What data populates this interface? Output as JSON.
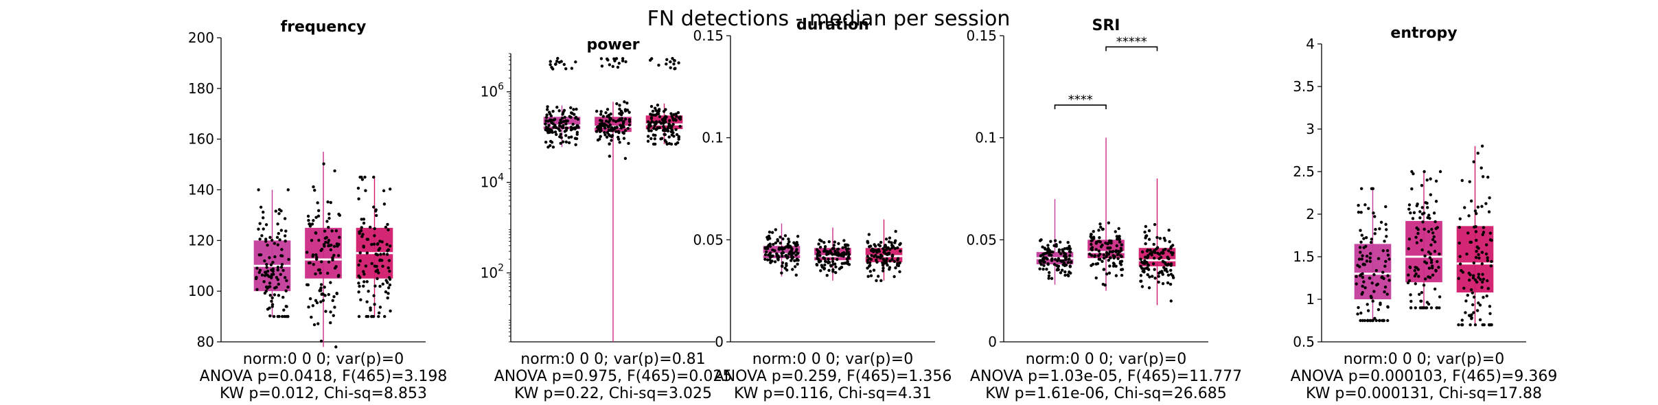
{
  "figure_title": "FN detections - median per session",
  "colors": {
    "group1": "#c43c9b",
    "group2": "#cb2b85",
    "group3": "#d11a6b",
    "median": "#ffffff",
    "points": "#000000",
    "axis": "#000000"
  },
  "chart_data": [
    {
      "type": "box",
      "title": "frequency",
      "yscale": "linear",
      "ylim": [
        80,
        200
      ],
      "yticks": [
        80,
        100,
        120,
        140,
        160,
        180,
        200
      ],
      "ytick_labels": [
        "80",
        "100",
        "120",
        "140",
        "160",
        "180",
        "200"
      ],
      "groups": [
        {
          "q1": 100,
          "median": 110,
          "q3": 120,
          "whisker_low": 90,
          "whisker_high": 140
        },
        {
          "q1": 105,
          "median": 112.5,
          "q3": 125,
          "whisker_low": 78,
          "whisker_high": 155
        },
        {
          "q1": 105,
          "median": 115,
          "q3": 125,
          "whisker_low": 90,
          "whisker_high": 145
        }
      ],
      "stats": [
        "norm:0  0  0; var(p)=0",
        "ANOVA p=0.0418, F(465)=3.198",
        "KW p=0.012, Chi-sq=8.853"
      ]
    },
    {
      "type": "box",
      "title": "power",
      "yscale": "log",
      "ylim": [
        3,
        7000000
      ],
      "yticks": [
        100,
        10000,
        1000000
      ],
      "ytick_labels": [
        "10",
        "10",
        "10"
      ],
      "ytick_exponents": [
        "2",
        "4",
        "6"
      ],
      "groups": [
        {
          "q1": 150000,
          "median": 180000,
          "q3": 280000,
          "whisker_low": 60000,
          "whisker_high": 500000
        },
        {
          "q1": 130000,
          "median": 170000,
          "q3": 280000,
          "whisker_low": 3,
          "whisker_high": 600000
        },
        {
          "q1": 150000,
          "median": 190000,
          "q3": 300000,
          "whisker_low": 70000,
          "whisker_high": 550000
        }
      ],
      "stats": [
        "norm:0  0  0; var(p)=0.81",
        "ANOVA p=0.975, F(465)=0.025",
        "KW p=0.22, Chi-sq=3.025"
      ]
    },
    {
      "type": "box",
      "title": "duration",
      "yscale": "linear",
      "ylim": [
        0,
        0.15
      ],
      "yticks": [
        0,
        0.05,
        0.1,
        0.15
      ],
      "ytick_labels": [
        "0",
        "0.05",
        "0.1",
        "0.15"
      ],
      "groups": [
        {
          "q1": 0.041,
          "median": 0.043,
          "q3": 0.047,
          "whisker_low": 0.032,
          "whisker_high": 0.058
        },
        {
          "q1": 0.04,
          "median": 0.042,
          "q3": 0.046,
          "whisker_low": 0.03,
          "whisker_high": 0.056
        },
        {
          "q1": 0.039,
          "median": 0.042,
          "q3": 0.046,
          "whisker_low": 0.03,
          "whisker_high": 0.06
        }
      ],
      "stats": [
        "norm:0  0  0; var(p)=0",
        "ANOVA p=0.259, F(465)=1.356",
        "KW p=0.116, Chi-sq=4.31"
      ]
    },
    {
      "type": "box",
      "title": "SRI",
      "yscale": "linear",
      "ylim": [
        0,
        0.15
      ],
      "yticks": [
        0,
        0.05,
        0.1,
        0.15
      ],
      "ytick_labels": [
        "0",
        "0.05",
        "0.1",
        "0.15"
      ],
      "groups": [
        {
          "q1": 0.038,
          "median": 0.041,
          "q3": 0.044,
          "whisker_low": 0.028,
          "whisker_high": 0.07
        },
        {
          "q1": 0.041,
          "median": 0.044,
          "q3": 0.05,
          "whisker_low": 0.025,
          "whisker_high": 0.1
        },
        {
          "q1": 0.037,
          "median": 0.04,
          "q3": 0.046,
          "whisker_low": 0.018,
          "whisker_high": 0.08
        }
      ],
      "significance": [
        {
          "from": 1,
          "to": 2,
          "y": 0.116,
          "label": "****"
        },
        {
          "from": 2,
          "to": 3,
          "y": 0.1445,
          "label": "*****"
        }
      ],
      "stats": [
        "norm:0  0  0; var(p)=0",
        "ANOVA p=1.03e-05, F(465)=11.777",
        "KW p=1.61e-06, Chi-sq=26.685"
      ]
    },
    {
      "type": "box",
      "title": "entropy",
      "yscale": "linear",
      "ylim": [
        0.5,
        4
      ],
      "yticks": [
        0.5,
        1,
        1.5,
        2,
        2.5,
        3,
        3.5,
        4
      ],
      "ytick_labels": [
        "0.5",
        "1",
        "1.5",
        "2",
        "2.5",
        "3",
        "3.5",
        "4"
      ],
      "groups": [
        {
          "q1": 1.0,
          "median": 1.3,
          "q3": 1.65,
          "whisker_low": 0.75,
          "whisker_high": 2.3
        },
        {
          "q1": 1.2,
          "median": 1.5,
          "q3": 1.92,
          "whisker_low": 0.9,
          "whisker_high": 2.5
        },
        {
          "q1": 1.08,
          "median": 1.42,
          "q3": 1.86,
          "whisker_low": 0.7,
          "whisker_high": 2.8
        }
      ],
      "stats": [
        "norm:0  0  0; var(p)=0",
        "ANOVA p=0.000103, F(465)=9.369",
        "KW p=0.000131, Chi-sq=17.88"
      ]
    }
  ]
}
